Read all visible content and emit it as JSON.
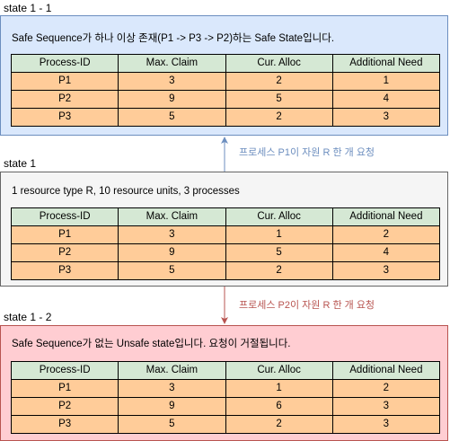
{
  "colors": {
    "top_fill": "#dae8fc",
    "top_stroke": "#6c8ebf",
    "mid_fill": "#f5f5f5",
    "mid_stroke": "#666666",
    "bot_fill": "#ffcdd2",
    "bot_stroke": "#b85450",
    "header_fill": "#d5e8d4",
    "row_fill": "#ffcc99",
    "up_arrow": "#6c8ebf",
    "down_arrow": "#b85450"
  },
  "top": {
    "label": "state 1 - 1",
    "description": "Safe Sequence가 하나 이상 존재(P1 -> P3 -> P2)하는 Safe State입니다.",
    "headers": [
      "Process-ID",
      "Max. Claim",
      "Cur. Alloc",
      "Additional Need"
    ],
    "rows": [
      [
        "P1",
        "3",
        "2",
        "1"
      ],
      [
        "P2",
        "9",
        "5",
        "4"
      ],
      [
        "P3",
        "5",
        "2",
        "3"
      ]
    ]
  },
  "arrow_up": {
    "note": "프로세스 P1이 자원 R 한 개 요청",
    "icon": "arrow-up-icon"
  },
  "mid": {
    "label": "state 1",
    "description": "1 resource type R, 10 resource units, 3 processes",
    "headers": [
      "Process-ID",
      "Max. Claim",
      "Cur. Alloc",
      "Additional Need"
    ],
    "rows": [
      [
        "P1",
        "3",
        "1",
        "2"
      ],
      [
        "P2",
        "9",
        "5",
        "4"
      ],
      [
        "P3",
        "5",
        "2",
        "3"
      ]
    ]
  },
  "arrow_down": {
    "note": "프로세스 P2이 자원 R 한 개 요청",
    "icon": "arrow-down-icon"
  },
  "bot": {
    "label": "state 1 - 2",
    "description": "Safe Sequence가 없는 Unsafe state입니다. 요청이 거절됩니다.",
    "headers": [
      "Process-ID",
      "Max. Claim",
      "Cur. Alloc",
      "Additional Need"
    ],
    "rows": [
      [
        "P1",
        "3",
        "1",
        "2"
      ],
      [
        "P2",
        "9",
        "6",
        "3"
      ],
      [
        "P3",
        "5",
        "2",
        "3"
      ]
    ]
  }
}
